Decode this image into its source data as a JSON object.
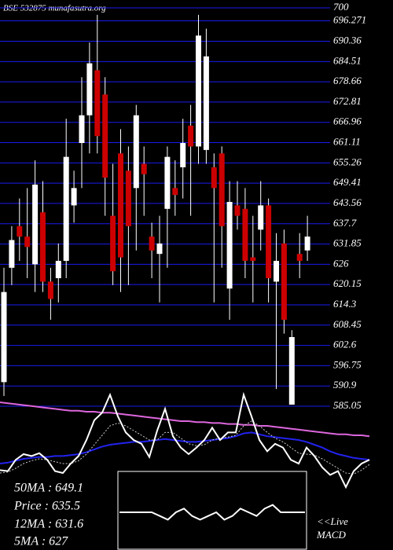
{
  "chart_data": [
    {
      "type": "candlestick",
      "title": "BSE 532875 munafasutra.org",
      "ylim": [
        585.05,
        700
      ],
      "yticks": [
        700,
        696.271,
        690.36,
        684.51,
        678.66,
        672.81,
        666.96,
        661.11,
        655.26,
        649.41,
        643.56,
        637.7,
        631.85,
        626,
        620.15,
        614.3,
        608.45,
        602.6,
        596.75,
        590.9,
        585.05
      ],
      "grid": true,
      "up_color": "#ffffff",
      "down_color": "#cc0000",
      "open": [
        592,
        625,
        637,
        634,
        626,
        641,
        621,
        622,
        627,
        643,
        661,
        669,
        682,
        675,
        640,
        658,
        653,
        648,
        655,
        634,
        629,
        642,
        648,
        654,
        666,
        660,
        659,
        654,
        658,
        619,
        643,
        642,
        628,
        636,
        643,
        621,
        632,
        585.5,
        629,
        630
      ],
      "high": [
        625,
        637,
        645,
        648,
        656,
        650,
        625,
        632,
        668,
        653,
        680,
        690,
        698,
        680,
        655,
        665,
        660,
        672,
        660,
        638,
        640,
        660,
        656,
        668,
        672,
        698,
        694,
        658,
        660,
        650,
        650,
        648,
        640,
        650,
        645,
        635,
        636,
        607,
        635,
        640
      ],
      "low": [
        588,
        620,
        627,
        622,
        618,
        618,
        610,
        615,
        622,
        638,
        648,
        658,
        658,
        640,
        620,
        618,
        620,
        630,
        640,
        622,
        615,
        625,
        640,
        645,
        640,
        655,
        655,
        615,
        625,
        610,
        636,
        622,
        615,
        630,
        615,
        590,
        606,
        585.5,
        622,
        627
      ],
      "close": [
        618,
        633,
        634,
        631,
        649,
        621,
        616,
        627,
        657,
        648,
        669,
        684,
        663,
        651,
        624,
        628,
        637,
        669,
        652,
        630,
        632,
        657,
        646,
        661,
        660,
        692,
        686,
        648,
        637,
        644,
        640,
        627,
        627,
        643,
        622,
        627,
        610,
        605,
        627,
        634
      ]
    },
    {
      "type": "line",
      "ylim": [
        0,
        100
      ],
      "series": [
        {
          "color": "#dd66dd",
          "values": [
            90,
            89,
            88,
            87,
            86,
            85,
            84,
            83,
            82,
            81,
            81,
            80,
            80,
            79,
            79,
            78,
            77,
            76,
            75,
            74,
            73,
            72,
            71,
            70,
            70,
            69,
            69,
            68,
            68,
            67,
            67,
            66,
            66,
            65,
            65,
            64,
            63,
            62,
            61,
            60,
            59,
            58,
            57,
            56,
            56,
            55,
            55,
            54
          ]
        },
        {
          "color": "#2222ee",
          "values": [
            25,
            26,
            28,
            30,
            31,
            32,
            32,
            33,
            33,
            34,
            35,
            37,
            40,
            43,
            45,
            46,
            47,
            48,
            48,
            49,
            50,
            51,
            50,
            49,
            48,
            48,
            49,
            50,
            51,
            52,
            54,
            57,
            58,
            56,
            54,
            53,
            52,
            51,
            50,
            48,
            45,
            42,
            38,
            35,
            33,
            31,
            30,
            29
          ]
        },
        {
          "color": "#cccccc",
          "dashed": true,
          "values": [
            15,
            16,
            20,
            25,
            28,
            30,
            29,
            27,
            25,
            25,
            28,
            35,
            45,
            55,
            65,
            68,
            65,
            60,
            55,
            50,
            50,
            58,
            58,
            52,
            46,
            44,
            45,
            50,
            52,
            53,
            55,
            65,
            70,
            65,
            58,
            52,
            48,
            42,
            36,
            35,
            34,
            30,
            25,
            20,
            15,
            14,
            18,
            24
          ]
        },
        {
          "color": "#ffffff",
          "values": [
            18,
            17,
            29,
            35,
            33,
            36,
            29,
            17,
            15,
            25,
            33,
            50,
            71,
            79,
            98,
            75,
            58,
            50,
            46,
            32,
            60,
            83,
            54,
            42,
            35,
            42,
            50,
            63,
            50,
            58,
            58,
            98,
            75,
            50,
            38,
            46,
            42,
            29,
            25,
            42,
            33,
            21,
            13,
            17,
            0,
            17,
            25,
            29
          ]
        }
      ]
    },
    {
      "type": "macd",
      "ylim": [
        -10,
        10
      ],
      "values": [
        0,
        0,
        0,
        0,
        0,
        -1,
        -2,
        0,
        1,
        -1,
        -2,
        -1,
        0,
        -2,
        -1,
        1,
        0,
        -1,
        1,
        2,
        0,
        0,
        0,
        0
      ],
      "color": "#ffffff",
      "label": "<<Live MACD"
    }
  ],
  "info": [
    "50MA : 649.1",
    "Price : 635.5",
    "12MA : 631.6",
    "5MA : 627"
  ]
}
